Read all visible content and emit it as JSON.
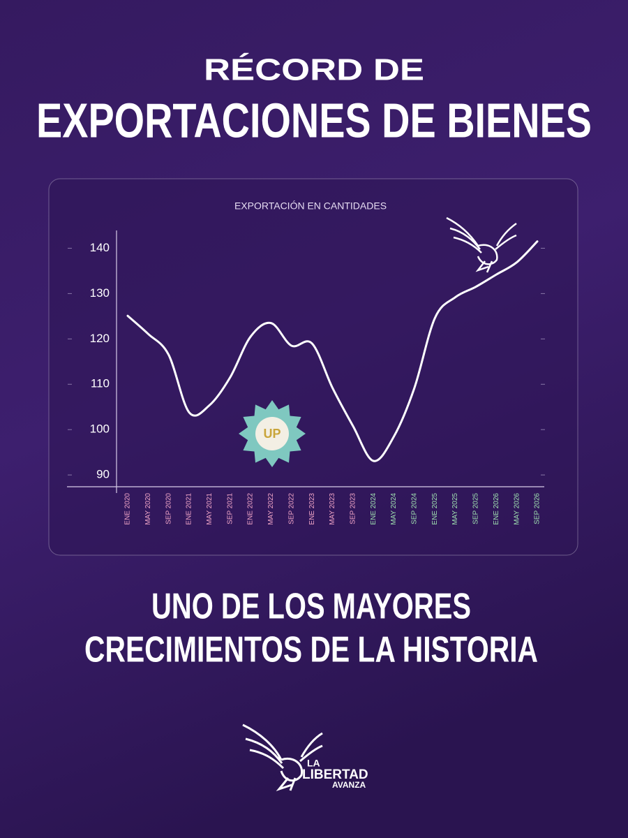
{
  "header": {
    "kicker": "RÉCORD DE",
    "title": "EXPORTACIONES DE BIENES"
  },
  "chart_data": {
    "type": "line",
    "title": "EXPORTACIÓN EN CANTIDADES",
    "categories": [
      "ENE 2020",
      "MAY 2020",
      "SEP 2020",
      "ENE 2021",
      "MAY 2021",
      "SEP 2021",
      "ENE 2022",
      "MAY 2022",
      "SEP 2022",
      "ENE 2023",
      "MAY 2023",
      "SEP 2023",
      "ENE 2024",
      "MAY 2024",
      "SEP 2024",
      "ENE 2025",
      "MAY 2025",
      "SEP 2025",
      "ENE 2026",
      "MAY 2026",
      "SEP 2026"
    ],
    "category_colors": [
      "#f2a6c8",
      "#f2a6c8",
      "#f2a6c8",
      "#f2a6c8",
      "#f2a6c8",
      "#f2a6c8",
      "#f2a6c8",
      "#f2a6c8",
      "#f2a6c8",
      "#f2a6c8",
      "#f2a6c8",
      "#f2a6c8",
      "#9fe0b0",
      "#9fe0b0",
      "#9fe0b0",
      "#9fe0b0",
      "#9fe0b0",
      "#9fe0b0",
      "#9fe0b0",
      "#9fe0b0",
      "#9fe0b0"
    ],
    "values": [
      125.1,
      121.1,
      116.5,
      103.8,
      105.4,
      111.5,
      120.5,
      123.5,
      118.5,
      119,
      109.2,
      100.8,
      93.1,
      98.5,
      109.2,
      124.6,
      129.2,
      131.5,
      134.2,
      136.9,
      141.5
    ],
    "color": "#ffffff",
    "ylim": [
      87.4,
      145
    ],
    "yticks": [
      90,
      100,
      110,
      120,
      130,
      140
    ]
  },
  "badge": "UP",
  "footer": {
    "line1": "UNO DE LOS MAYORES",
    "line2": "CRECIMIENTOS DE LA HISTORIA"
  },
  "logo": {
    "line1": "LA",
    "line2": "LIBERTAD",
    "line3": "AVANZA"
  }
}
